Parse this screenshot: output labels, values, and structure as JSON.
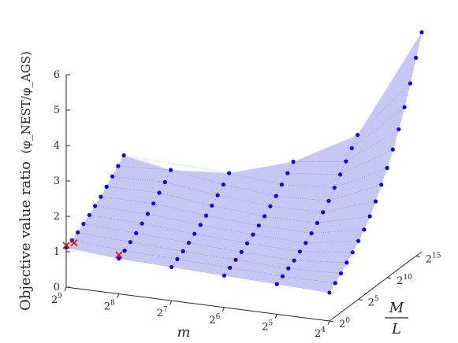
{
  "chart_data": {
    "type": "surface3d",
    "zlabel_main": "Objective value ratio",
    "zlabel_expr": "(φ_NEST/φ_AGS)",
    "xlabel": "m",
    "ylabel_num": "M",
    "ylabel_den": "L",
    "zticks": [
      "0",
      "1",
      "2",
      "3",
      "4",
      "5",
      "6"
    ],
    "xticks": [
      {
        "base": "2",
        "exp": "9"
      },
      {
        "base": "2",
        "exp": "8"
      },
      {
        "base": "2",
        "exp": "7"
      },
      {
        "base": "2",
        "exp": "6"
      },
      {
        "base": "2",
        "exp": "5"
      },
      {
        "base": "2",
        "exp": "4"
      }
    ],
    "yticks": [
      {
        "base": "2",
        "exp": "0"
      },
      {
        "base": "2",
        "exp": "5"
      },
      {
        "base": "2",
        "exp": "10"
      },
      {
        "base": "2",
        "exp": "15"
      }
    ],
    "x_log2_range": [
      4,
      9
    ],
    "y_log2_range": [
      0,
      16
    ],
    "z_range": [
      0,
      6
    ],
    "mesh_x_log2": [
      4,
      5,
      6,
      7,
      8,
      9
    ],
    "mesh_y_log2": [
      0,
      1,
      2,
      3,
      4,
      5,
      6,
      7,
      8,
      9,
      10,
      11,
      12,
      13,
      14,
      15,
      16
    ],
    "series": [
      {
        "x_log2": 4,
        "z": [
          0.8,
          0.95,
          1.1,
          1.28,
          1.45,
          1.65,
          1.85,
          2.1,
          2.4,
          2.75,
          3.1,
          3.5,
          3.95,
          4.45,
          5.0,
          5.6,
          6.2
        ]
      },
      {
        "x_log2": 5,
        "z": [
          0.85,
          0.95,
          1.05,
          1.15,
          1.28,
          1.4,
          1.55,
          1.72,
          1.9,
          2.1,
          2.35,
          2.6,
          2.85,
          3.1,
          3.35
        ]
      },
      {
        "x_log2": 6,
        "z": [
          0.9,
          1.0,
          1.1,
          1.2,
          1.32,
          1.45,
          1.58,
          1.72,
          1.88,
          2.05,
          2.25,
          2.45,
          2.65
        ]
      },
      {
        "x_log2": 7,
        "z": [
          0.95,
          1.05,
          1.15,
          1.27,
          1.4,
          1.53,
          1.67,
          1.83,
          2.0,
          2.18,
          2.38
        ]
      },
      {
        "x_log2": 8,
        "z": [
          1.0,
          1.1,
          1.22,
          1.35,
          1.5,
          1.65,
          1.82,
          2.0,
          2.18,
          2.4
        ]
      },
      {
        "x_log2": 9,
        "z": [
          1.12,
          1.2,
          1.3,
          1.42,
          1.55,
          1.68,
          1.82,
          1.98,
          2.15,
          2.32,
          2.5
        ]
      }
    ],
    "markers_x": [
      {
        "x_log2": 8,
        "y_log2": 0,
        "z": 1.1
      },
      {
        "x_log2": 9,
        "y_log2": 0,
        "z": 1.18
      },
      {
        "x_log2": 8.85,
        "y_log2": 0,
        "z": 1.28
      }
    ],
    "colors": {
      "surface": "#b4b4f0",
      "dots": "#0a0ad6",
      "markers": "#e00000",
      "axes": "#262626"
    }
  }
}
